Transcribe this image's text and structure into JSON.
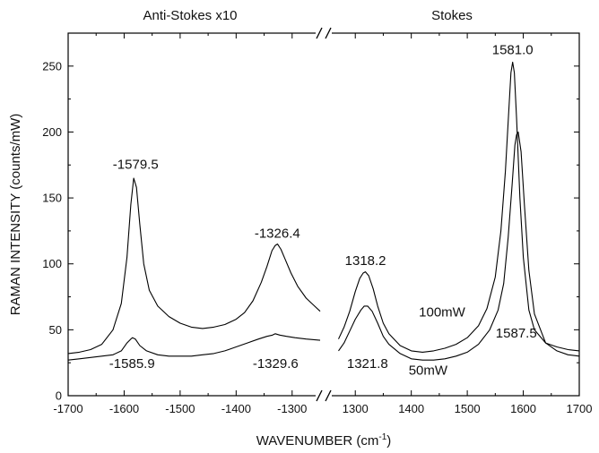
{
  "chart_data": {
    "type": "line",
    "xlabel": "WAVENUMBER (cm",
    "xlabel_sup": "-1",
    "xlabel_end": ")",
    "ylabel": "RAMAN INTENSITY (counts/mW)",
    "ylim": [
      0,
      275
    ],
    "y_ticks": [
      0,
      50,
      100,
      150,
      200,
      250
    ],
    "broken_x_axis": true,
    "grid": false,
    "panels": [
      {
        "name": "Anti-Stokes x10",
        "xlim": [
          -1700,
          -1250
        ],
        "x_ticks": [
          -1700,
          -1600,
          -1500,
          -1400,
          -1300
        ],
        "series": [
          {
            "name": "100mW",
            "x": [
              -1700,
              -1680,
              -1660,
              -1640,
              -1620,
              -1605,
              -1595,
              -1588,
              -1583,
              -1578,
              -1572,
              -1565,
              -1555,
              -1540,
              -1520,
              -1500,
              -1480,
              -1460,
              -1440,
              -1420,
              -1400,
              -1385,
              -1370,
              -1355,
              -1345,
              -1336,
              -1330,
              -1326,
              -1320,
              -1312,
              -1302,
              -1290,
              -1275,
              -1260,
              -1250
            ],
            "y": [
              32,
              33,
              35,
              39,
              50,
              70,
              105,
              145,
              165,
              158,
              130,
              100,
              80,
              68,
              60,
              55,
              52,
              51,
              52,
              54,
              58,
              63,
              72,
              86,
              98,
              110,
              114,
              115,
              111,
              103,
              93,
              83,
              74,
              68,
              64
            ]
          },
          {
            "name": "50mW",
            "x": [
              -1700,
              -1680,
              -1660,
              -1640,
              -1620,
              -1605,
              -1595,
              -1588,
              -1585,
              -1580,
              -1572,
              -1560,
              -1540,
              -1520,
              -1500,
              -1480,
              -1460,
              -1440,
              -1420,
              -1400,
              -1380,
              -1360,
              -1345,
              -1335,
              -1330,
              -1322,
              -1310,
              -1295,
              -1275,
              -1250
            ],
            "y": [
              27,
              28,
              29,
              30,
              31,
              34,
              40,
              43,
              44,
              43,
              38,
              34,
              31,
              30,
              30,
              30,
              31,
              32,
              34,
              37,
              40,
              43,
              45,
              46,
              47,
              46,
              45,
              44,
              43,
              42
            ]
          }
        ],
        "annotations": [
          {
            "text": "-1579.5",
            "x": -1579.5,
            "y": 172
          },
          {
            "text": "-1326.4",
            "x": -1326.4,
            "y": 120
          },
          {
            "text": "-1585.9",
            "x": -1585.9,
            "y": 21
          },
          {
            "text": "-1329.6",
            "x": -1329.6,
            "y": 21
          }
        ]
      },
      {
        "name": "Stokes",
        "xlim": [
          1250,
          1700
        ],
        "x_ticks": [
          1300,
          1400,
          1500,
          1600,
          1700
        ],
        "series": [
          {
            "name": "100mW",
            "x": [
              1270,
              1280,
              1290,
              1300,
              1308,
              1314,
              1318,
              1324,
              1332,
              1340,
              1350,
              1360,
              1380,
              1400,
              1420,
              1440,
              1460,
              1480,
              1500,
              1520,
              1535,
              1550,
              1560,
              1568,
              1574,
              1578,
              1581,
              1584,
              1588,
              1594,
              1600,
              1610,
              1620,
              1640,
              1660,
              1680,
              1700
            ],
            "y": [
              43,
              52,
              64,
              79,
              89,
              93,
              94,
              91,
              81,
              68,
              55,
              47,
              38,
              34,
              33,
              34,
              36,
              39,
              44,
              53,
              66,
              90,
              125,
              170,
              215,
              245,
              253,
              245,
              210,
              150,
              105,
              65,
              50,
              40,
              37,
              35,
              34
            ]
          },
          {
            "name": "50mW",
            "x": [
              1270,
              1280,
              1290,
              1300,
              1310,
              1316,
              1322,
              1330,
              1340,
              1350,
              1360,
              1380,
              1400,
              1420,
              1440,
              1460,
              1480,
              1500,
              1520,
              1540,
              1555,
              1565,
              1573,
              1580,
              1585,
              1588,
              1591,
              1596,
              1602,
              1610,
              1620,
              1640,
              1660,
              1680,
              1700
            ],
            "y": [
              34,
              40,
              49,
              58,
              65,
              68,
              68,
              64,
              55,
              45,
              39,
              32,
              28,
              27,
              27,
              28,
              30,
              33,
              39,
              50,
              65,
              85,
              120,
              160,
              190,
              198,
              200,
              185,
              145,
              95,
              62,
              40,
              34,
              31,
              30
            ]
          }
        ],
        "annotations": [
          {
            "text": "1581.0",
            "x": 1581.0,
            "y": 259
          },
          {
            "text": "1318.2",
            "x": 1318.2,
            "y": 99
          },
          {
            "text": "1321.8",
            "x": 1321.8,
            "y": 21
          },
          {
            "text": "1587.5",
            "x": 1587.5,
            "y": 44
          },
          {
            "text": "100mW",
            "x": 1455,
            "y": 60
          },
          {
            "text": "50mW",
            "x": 1430,
            "y": 16
          }
        ]
      }
    ]
  }
}
